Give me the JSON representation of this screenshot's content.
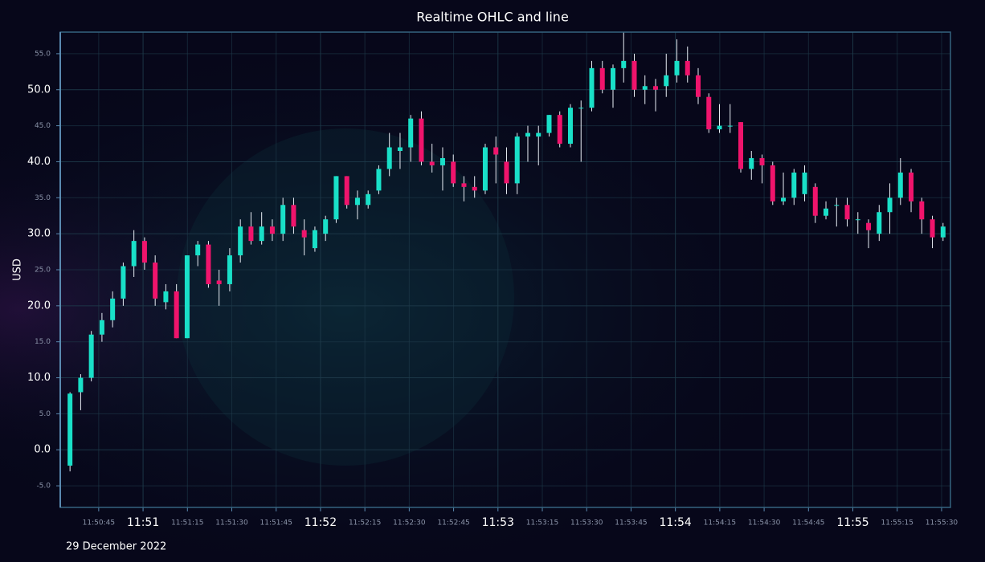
{
  "chart_data": {
    "type": "candlestick",
    "title": "Realtime OHLC and line",
    "y_label": "USD",
    "date_label": "29 December 2022",
    "up_color": "#19e0c8",
    "down_color": "#f0146c",
    "grid": true,
    "xlim": [
      32,
      333
    ],
    "xticks": [
      {
        "value": 45,
        "label": "11:50:45"
      },
      {
        "value": 60,
        "label": "11:51"
      },
      {
        "value": 75,
        "label": "11:51:15"
      },
      {
        "value": 90,
        "label": "11:51:30"
      },
      {
        "value": 105,
        "label": "11:51:45"
      },
      {
        "value": 120,
        "label": "11:52"
      },
      {
        "value": 135,
        "label": "11:52:15"
      },
      {
        "value": 150,
        "label": "11:52:30"
      },
      {
        "value": 165,
        "label": "11:52:45"
      },
      {
        "value": 180,
        "label": "11:53"
      },
      {
        "value": 195,
        "label": "11:53:15"
      },
      {
        "value": 210,
        "label": "11:53:30"
      },
      {
        "value": 225,
        "label": "11:53:45"
      },
      {
        "value": 240,
        "label": "11:54"
      },
      {
        "value": 255,
        "label": "11:54:15"
      },
      {
        "value": 270,
        "label": "11:54:30"
      },
      {
        "value": 285,
        "label": "11:54:45"
      },
      {
        "value": 300,
        "label": "11:55"
      },
      {
        "value": 315,
        "label": "11:55:15"
      },
      {
        "value": 330,
        "label": "11:55:30"
      }
    ],
    "ylim": [
      -8,
      58
    ],
    "yticks": [
      {
        "value": -5,
        "label": "-5.0"
      },
      {
        "value": 0,
        "label": "0.0"
      },
      {
        "value": 5,
        "label": "5.0"
      },
      {
        "value": 10,
        "label": "10.0"
      },
      {
        "value": 15,
        "label": "15.0"
      },
      {
        "value": 20,
        "label": "20.0"
      },
      {
        "value": 25,
        "label": "25.0"
      },
      {
        "value": 30,
        "label": "30.0"
      },
      {
        "value": 35,
        "label": "35.0"
      },
      {
        "value": 40,
        "label": "40.0"
      },
      {
        "value": 45,
        "label": "45.0"
      },
      {
        "value": 50,
        "label": "50.0"
      },
      {
        "value": 55,
        "label": "55.0"
      }
    ],
    "x": [
      35.3,
      38.9,
      42.5,
      46.1,
      49.7,
      53.3,
      56.9,
      60.5,
      64.1,
      67.7,
      71.3,
      74.9,
      78.5,
      82.1,
      85.7,
      89.3,
      92.9,
      96.5,
      100.1,
      103.7,
      107.3,
      110.9,
      114.5,
      118.1,
      121.7,
      125.3,
      128.9,
      132.5,
      136.1,
      139.7,
      143.3,
      146.9,
      150.5,
      154.1,
      157.7,
      161.3,
      164.9,
      168.5,
      172.1,
      175.7,
      179.3,
      182.9,
      186.5,
      190.1,
      193.7,
      197.3,
      200.9,
      204.5,
      208.1,
      211.7,
      215.3,
      218.9,
      222.5,
      226.1,
      229.7,
      233.3,
      236.9,
      240.5,
      244.1,
      247.7,
      251.3,
      254.9,
      258.5,
      262.1,
      265.7,
      269.3,
      272.9,
      276.5,
      280.1,
      283.7,
      287.3,
      290.9,
      294.5,
      298.1,
      301.7,
      305.3,
      308.9,
      312.5,
      316.1,
      319.7,
      323.3,
      326.9,
      330.5
    ],
    "open": [
      -2.2,
      8,
      10,
      16,
      18,
      21,
      25.5,
      29,
      26,
      20.5,
      22,
      15.5,
      27,
      28.5,
      23.5,
      23,
      27,
      31,
      29,
      31,
      30,
      34,
      30.5,
      28,
      30,
      32,
      38,
      34,
      34,
      36,
      39,
      41.5,
      42,
      46,
      40,
      39.5,
      40,
      37,
      36.5,
      36,
      42,
      40,
      37,
      43.5,
      43.5,
      44,
      46.5,
      42.5,
      47.5,
      47.5,
      53,
      50,
      53,
      54,
      50,
      50.5,
      50.5,
      52,
      54,
      52,
      49,
      44.5,
      45,
      45.5,
      39,
      40.5,
      39.5,
      34.5,
      35,
      35.5,
      36.5,
      32.5,
      34,
      34,
      32,
      31.5,
      30,
      33,
      35,
      38.5,
      34.5,
      32,
      29.5
    ],
    "high": [
      8,
      10.5,
      16.5,
      19,
      22,
      26,
      30.5,
      29.5,
      27,
      23,
      23,
      27,
      29,
      29,
      25,
      28,
      32,
      33,
      33,
      32,
      35,
      35,
      32,
      31,
      32.5,
      38,
      38,
      36,
      36,
      39.5,
      44,
      44,
      46.5,
      47,
      42.5,
      42,
      41,
      38,
      38,
      42.5,
      43.5,
      42,
      44,
      45,
      45,
      46.5,
      47,
      48,
      48.5,
      54,
      54,
      53.5,
      58,
      55,
      52,
      51.5,
      55,
      57,
      56,
      53,
      49.5,
      48,
      48,
      45.5,
      41.5,
      41,
      40,
      38.5,
      39,
      39.5,
      37,
      34.5,
      35,
      35,
      33,
      32,
      34,
      37,
      40.5,
      39,
      35,
      32.5,
      31.5
    ],
    "low": [
      -3,
      5.5,
      9.5,
      15,
      17,
      20,
      24,
      25,
      20,
      19.5,
      15.5,
      15.5,
      25.5,
      22.5,
      20,
      22,
      26,
      28.5,
      28.5,
      29,
      29,
      30,
      27,
      27.5,
      29,
      31.5,
      33.5,
      32,
      33.5,
      35.5,
      38,
      39,
      40,
      39.5,
      38.5,
      36,
      36.5,
      34.5,
      35,
      35.5,
      37,
      35.5,
      35.5,
      40,
      39.5,
      43.5,
      42,
      42,
      40,
      47,
      49.5,
      47.5,
      51,
      49,
      48,
      47,
      49,
      51,
      51,
      48,
      44,
      44,
      44,
      38.5,
      37.5,
      37,
      34,
      34,
      34,
      34.5,
      31.5,
      32,
      31,
      31,
      30,
      28,
      29,
      30,
      34,
      33,
      30,
      28,
      29
    ],
    "close": [
      7.8,
      10,
      16,
      18,
      21,
      25.5,
      29,
      26,
      21,
      22,
      15.5,
      27,
      28.5,
      23,
      23,
      27,
      31,
      29,
      31,
      30,
      34,
      31,
      29.5,
      30.5,
      32,
      38,
      34,
      35,
      35.5,
      39,
      42,
      42,
      46,
      40,
      39.5,
      40.5,
      37,
      36.5,
      36,
      42,
      41,
      37,
      43.5,
      44,
      44,
      46.5,
      42.5,
      47.5,
      47.5,
      53,
      50,
      53,
      54,
      50,
      50.5,
      50,
      52,
      54,
      52,
      49,
      44.5,
      45,
      45,
      39,
      40.5,
      39.5,
      34.5,
      35,
      38.5,
      38.5,
      32.5,
      33.5,
      34,
      32,
      32,
      30.5,
      33,
      35,
      38.5,
      34.5,
      32,
      29.5,
      31
    ]
  }
}
